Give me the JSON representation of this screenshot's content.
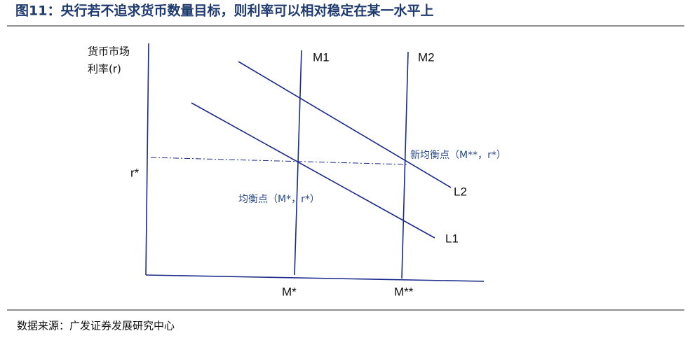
{
  "header": {
    "title": "图11：央行若不追求货币数量目标，则利率可以相对稳定在某一水平上"
  },
  "diagram": {
    "y_axis_label": [
      "货币市场",
      "利率(r)"
    ],
    "r_star": "r*",
    "curves": {
      "m1": "M1",
      "m2": "M2",
      "l1": "L1",
      "l2": "L2"
    },
    "x_marks": {
      "m_star": "M*",
      "m_star_star": "M**"
    },
    "points": {
      "old": "均衡点（M*，r*）",
      "new": "新均衡点（M**，r*）"
    }
  },
  "footer": {
    "source": "数据来源：广发证券发展研究中心"
  }
}
